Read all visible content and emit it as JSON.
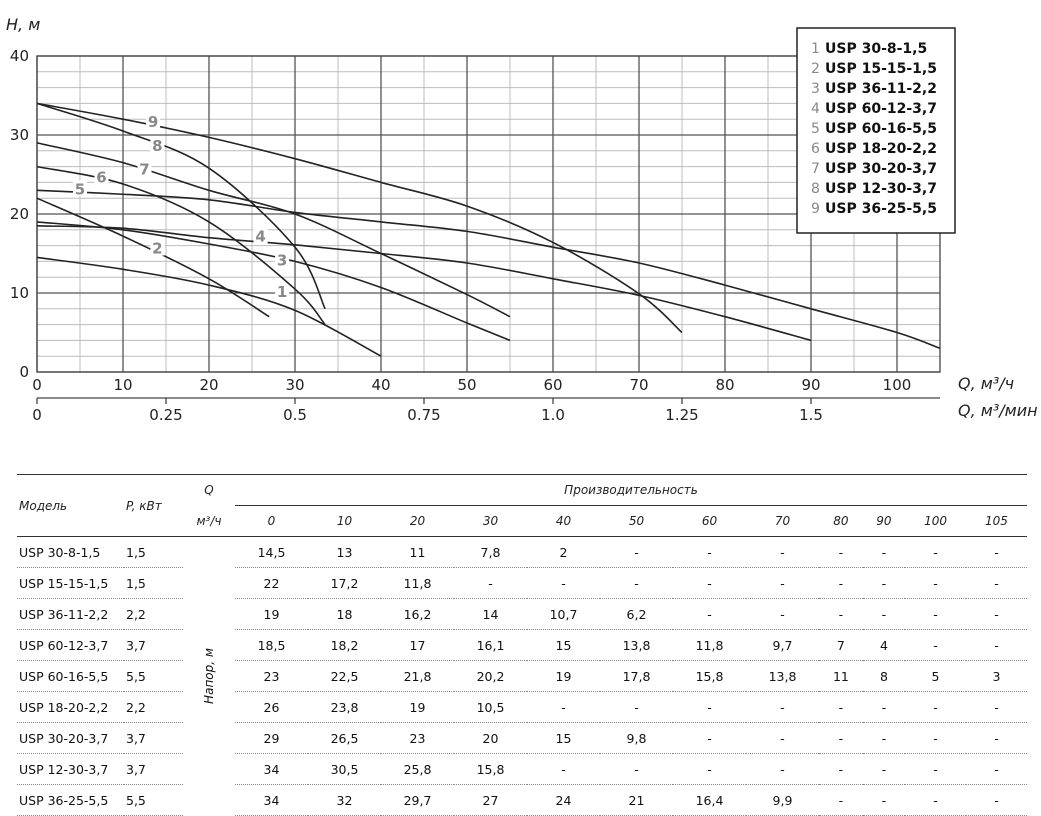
{
  "chart_data": {
    "type": "line",
    "ylabel": "H, м",
    "xlabel": "Q, м³/ч",
    "xlabel2": "Q, м³/мин",
    "xlim": [
      0,
      105
    ],
    "ylim": [
      0,
      40
    ],
    "x_ticks": [
      "0",
      "10",
      "20",
      "30",
      "40",
      "50",
      "60",
      "70",
      "80",
      "90",
      "100"
    ],
    "y_ticks": [
      "0",
      "10",
      "20",
      "30",
      "40"
    ],
    "x2_ticks": [
      {
        "v": 0,
        "label": "0"
      },
      {
        "v": 0.25,
        "label": "0.25"
      },
      {
        "v": 0.5,
        "label": "0.5"
      },
      {
        "v": 0.75,
        "label": "0.75"
      },
      {
        "v": 1.0,
        "label": "1.0"
      },
      {
        "v": 1.25,
        "label": "1.25"
      },
      {
        "v": 1.5,
        "label": "1.5"
      }
    ],
    "grid": true,
    "legend_position": "top-right",
    "series": [
      {
        "id": "1",
        "name": "USP 30-8-1,5",
        "x": [
          0,
          10,
          20,
          30,
          40
        ],
        "y": [
          14.5,
          13,
          11,
          7.8,
          2
        ],
        "label_at": [
          28.5,
          10
        ]
      },
      {
        "id": "2",
        "name": "USP 15-15-1,5",
        "x": [
          0,
          10,
          20,
          27
        ],
        "y": [
          22,
          17.2,
          11.8,
          7
        ],
        "label_at": [
          14,
          15.5
        ]
      },
      {
        "id": "3",
        "name": "USP 36-11-2,2",
        "x": [
          0,
          10,
          20,
          30,
          40,
          50,
          55
        ],
        "y": [
          19,
          18,
          16.2,
          14,
          10.7,
          6.2,
          4
        ],
        "label_at": [
          28.5,
          14
        ]
      },
      {
        "id": "4",
        "name": "USP 60-12-3,7",
        "x": [
          0,
          10,
          20,
          30,
          40,
          50,
          60,
          70,
          80,
          90
        ],
        "y": [
          18.5,
          18.2,
          17,
          16.1,
          15,
          13.8,
          11.8,
          9.7,
          7,
          4
        ],
        "label_at": [
          26,
          17
        ]
      },
      {
        "id": "5",
        "name": "USP 60-16-5,5",
        "x": [
          0,
          10,
          20,
          30,
          40,
          50,
          60,
          70,
          80,
          90,
          100,
          105
        ],
        "y": [
          23,
          22.5,
          21.8,
          20.2,
          19,
          17.8,
          15.8,
          13.8,
          11,
          8,
          5,
          3
        ],
        "label_at": [
          5,
          23
        ]
      },
      {
        "id": "6",
        "name": "USP 18-20-2,2",
        "x": [
          0,
          10,
          20,
          30,
          33.5
        ],
        "y": [
          26,
          23.8,
          19,
          10.5,
          6
        ],
        "label_at": [
          7.5,
          24.5
        ]
      },
      {
        "id": "7",
        "name": "USP 30-20-3,7",
        "x": [
          0,
          10,
          20,
          30,
          40,
          50,
          55
        ],
        "y": [
          29,
          26.5,
          23,
          20,
          15,
          9.8,
          7
        ],
        "label_at": [
          12.5,
          25.5
        ]
      },
      {
        "id": "8",
        "name": "USP 12-30-3,7",
        "x": [
          0,
          10,
          20,
          30,
          33.5
        ],
        "y": [
          34,
          30.5,
          25.8,
          15.8,
          8
        ],
        "label_at": [
          14,
          28.5
        ]
      },
      {
        "id": "9",
        "name": "USP 36-25-5,5",
        "x": [
          0,
          10,
          20,
          30,
          40,
          50,
          60,
          70,
          75
        ],
        "y": [
          34,
          32,
          29.7,
          27,
          24,
          21,
          16.4,
          9.9,
          5
        ],
        "label_at": [
          13.5,
          31.5
        ]
      }
    ]
  },
  "table": {
    "col_model": "Модель",
    "col_power": "P, кВт",
    "col_q": "Q",
    "col_unit": "м³/ч",
    "col_group": "Производительность",
    "head_label": "Напор, м",
    "flows": [
      "0",
      "10",
      "20",
      "30",
      "40",
      "50",
      "60",
      "70",
      "80",
      "90",
      "100",
      "105"
    ],
    "rows": [
      {
        "model": "USP 30-8-1,5",
        "power": "1,5",
        "values": [
          "14,5",
          "13",
          "11",
          "7,8",
          "2",
          "-",
          "-",
          "-",
          "-",
          "-",
          "-",
          "-"
        ]
      },
      {
        "model": "USP 15-15-1,5",
        "power": "1,5",
        "values": [
          "22",
          "17,2",
          "11,8",
          "-",
          "-",
          "-",
          "-",
          "-",
          "-",
          "-",
          "-",
          "-"
        ]
      },
      {
        "model": "USP 36-11-2,2",
        "power": "2,2",
        "values": [
          "19",
          "18",
          "16,2",
          "14",
          "10,7",
          "6,2",
          "-",
          "-",
          "-",
          "-",
          "-",
          "-"
        ]
      },
      {
        "model": "USP 60-12-3,7",
        "power": "3,7",
        "values": [
          "18,5",
          "18,2",
          "17",
          "16,1",
          "15",
          "13,8",
          "11,8",
          "9,7",
          "7",
          "4",
          "-",
          "-"
        ]
      },
      {
        "model": "USP 60-16-5,5",
        "power": "5,5",
        "values": [
          "23",
          "22,5",
          "21,8",
          "20,2",
          "19",
          "17,8",
          "15,8",
          "13,8",
          "11",
          "8",
          "5",
          "3"
        ]
      },
      {
        "model": "USP 18-20-2,2",
        "power": "2,2",
        "values": [
          "26",
          "23,8",
          "19",
          "10,5",
          "-",
          "-",
          "-",
          "-",
          "-",
          "-",
          "-",
          "-"
        ]
      },
      {
        "model": "USP 30-20-3,7",
        "power": "3,7",
        "values": [
          "29",
          "26,5",
          "23",
          "20",
          "15",
          "9,8",
          "-",
          "-",
          "-",
          "-",
          "-",
          "-"
        ]
      },
      {
        "model": "USP 12-30-3,7",
        "power": "3,7",
        "values": [
          "34",
          "30,5",
          "25,8",
          "15,8",
          "-",
          "-",
          "-",
          "-",
          "-",
          "-",
          "-",
          "-"
        ]
      },
      {
        "model": "USP 36-25-5,5",
        "power": "5,5",
        "values": [
          "34",
          "32",
          "29,7",
          "27",
          "24",
          "21",
          "16,4",
          "9,9",
          "-",
          "-",
          "-",
          "-"
        ]
      }
    ]
  }
}
